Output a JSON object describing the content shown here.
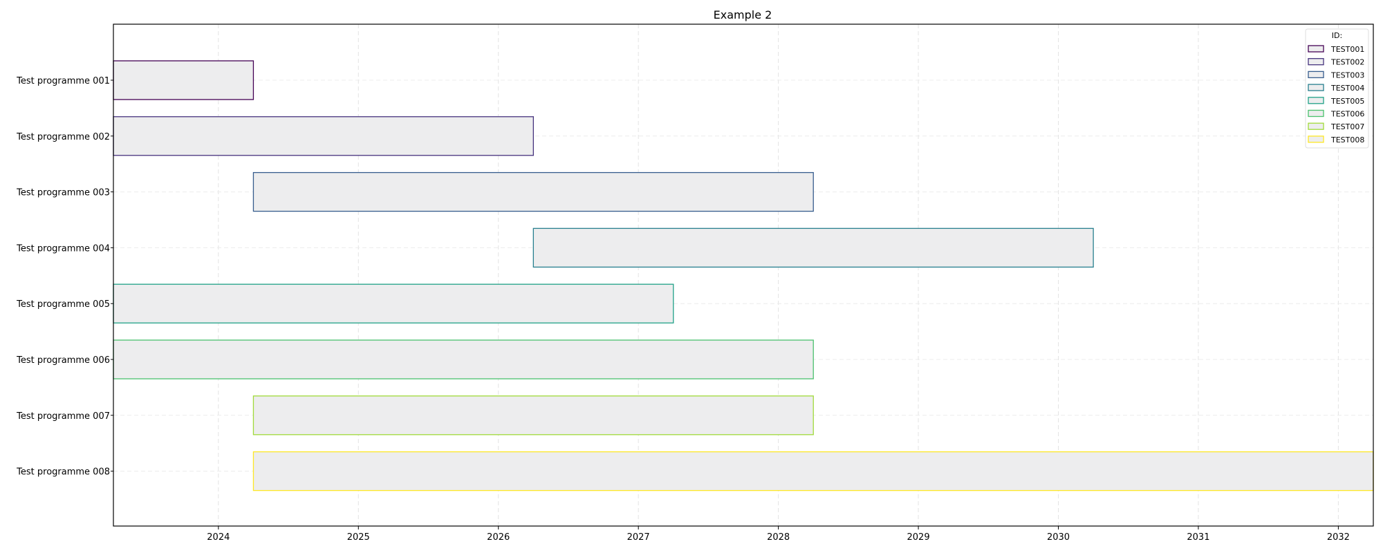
{
  "chart_data": {
    "type": "gantt",
    "title": "Example 2",
    "xlabel": "",
    "ylabel": "",
    "xlim": [
      2023.25,
      2032.25
    ],
    "x_ticks": [
      2024,
      2025,
      2026,
      2027,
      2028,
      2029,
      2030,
      2031,
      2032
    ],
    "grid": true,
    "legend": {
      "title": "ID:",
      "placement": "top-right",
      "entries": [
        "TEST001",
        "TEST002",
        "TEST003",
        "TEST004",
        "TEST005",
        "TEST006",
        "TEST007",
        "TEST008"
      ]
    },
    "tasks": [
      {
        "label": "Test programme 001",
        "id": "TEST001",
        "start": 2023.25,
        "end": 2024.25,
        "color": "#440154"
      },
      {
        "label": "Test programme 002",
        "id": "TEST002",
        "start": 2023.25,
        "end": 2026.25,
        "color": "#46327e"
      },
      {
        "label": "Test programme 003",
        "id": "TEST003",
        "start": 2024.25,
        "end": 2028.25,
        "color": "#365c8d"
      },
      {
        "label": "Test programme 004",
        "id": "TEST004",
        "start": 2026.25,
        "end": 2030.25,
        "color": "#277f8e"
      },
      {
        "label": "Test programme 005",
        "id": "TEST005",
        "start": 2023.25,
        "end": 2027.25,
        "color": "#1fa187"
      },
      {
        "label": "Test programme 006",
        "id": "TEST006",
        "start": 2023.25,
        "end": 2028.25,
        "color": "#4ac16d"
      },
      {
        "label": "Test programme 007",
        "id": "TEST007",
        "start": 2024.25,
        "end": 2028.25,
        "color": "#a0da39"
      },
      {
        "label": "Test programme 008",
        "id": "TEST008",
        "start": 2024.25,
        "end": 2032.25,
        "color": "#fde725"
      }
    ],
    "bar_fill": "#ededee"
  }
}
